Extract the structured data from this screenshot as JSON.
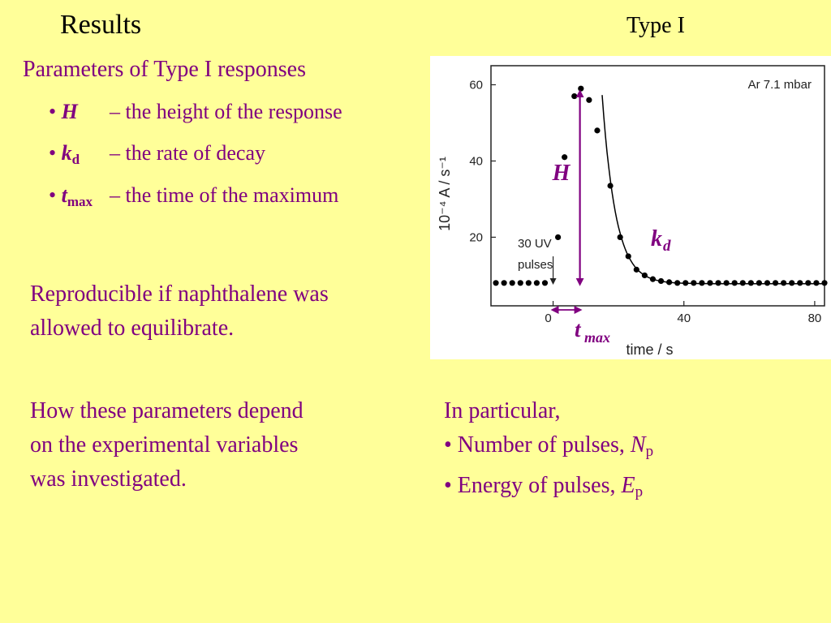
{
  "slide": {
    "title": "Results",
    "type_label": "Type I",
    "subtitle": "Parameters of Type I responses",
    "bullets": [
      {
        "marker": "•",
        "symbol": "H",
        "subscript": "",
        "description": "– the height of the response"
      },
      {
        "marker": "•",
        "symbol": "k",
        "subscript": "d",
        "description": "– the rate of decay"
      },
      {
        "marker": "•",
        "symbol": "t",
        "subscript": "max",
        "description": "– the time of the maximum"
      }
    ],
    "para1": [
      "Reproducible if naphthalene was",
      "allowed to equilibrate."
    ],
    "para2": [
      "How these parameters depend",
      "on the experimental variables",
      "was investigated."
    ],
    "para3": {
      "line1": "In particular,",
      "items": [
        {
          "text": "• Number of pulses, ",
          "symbol": "N",
          "subscript": "p"
        },
        {
          "text": "• Energy of pulses, ",
          "symbol": "E",
          "subscript": "p"
        }
      ]
    }
  },
  "chart_data": {
    "type": "scatter",
    "xlabel": "time / s",
    "ylabel": "10⁻⁴ A / s⁻¹",
    "annotation": "Ar 7.1 mbar",
    "x_ticks": [
      0,
      40,
      80
    ],
    "y_ticks": [
      20,
      40,
      60
    ],
    "xlim": [
      -19,
      83
    ],
    "ylim": [
      2,
      65
    ],
    "pulse_label": [
      "30 UV",
      "pulses"
    ],
    "label_H": "H",
    "label_kd": {
      "main": "k",
      "sub": "d"
    },
    "label_tmax": {
      "main": "t",
      "sub": "max"
    },
    "colors": {
      "points": "#000000",
      "fit": "#000000",
      "annotation_arrow": "#800080"
    },
    "series": [
      {
        "values": [
          [
            -17.5,
            8
          ],
          [
            -15,
            8
          ],
          [
            -12.5,
            8
          ],
          [
            -10,
            8
          ],
          [
            -7.5,
            8
          ],
          [
            -5,
            8
          ],
          [
            -2.5,
            8
          ],
          [
            1.5,
            20
          ],
          [
            3.5,
            41
          ],
          [
            6.5,
            57
          ],
          [
            8.5,
            59
          ],
          [
            11,
            56
          ],
          [
            13.5,
            48
          ],
          [
            17.5,
            33.5
          ],
          [
            20.5,
            20
          ],
          [
            23,
            15
          ],
          [
            25.5,
            11.5
          ],
          [
            28,
            10
          ],
          [
            30.5,
            9
          ],
          [
            33,
            8.5
          ],
          [
            35.5,
            8.2
          ],
          [
            38,
            8
          ],
          [
            40.5,
            8
          ],
          [
            43,
            8
          ],
          [
            45.5,
            8
          ],
          [
            48,
            8
          ],
          [
            50.5,
            8
          ],
          [
            53,
            8
          ],
          [
            55.5,
            8
          ],
          [
            58,
            8
          ],
          [
            60.5,
            8
          ],
          [
            63,
            8
          ],
          [
            65.5,
            8
          ],
          [
            68,
            8
          ],
          [
            70.5,
            8
          ],
          [
            73,
            8
          ],
          [
            75.5,
            8
          ],
          [
            78,
            8
          ],
          [
            80.5,
            8
          ],
          [
            83,
            8
          ]
        ]
      }
    ],
    "fit": {
      "x_start": 15,
      "x_end": 83,
      "baseline": 7.8,
      "amplitude": 49.5,
      "decay": 0.24
    },
    "tmax_x": 8.5,
    "peak_y": 59,
    "baseline_y": 8
  }
}
